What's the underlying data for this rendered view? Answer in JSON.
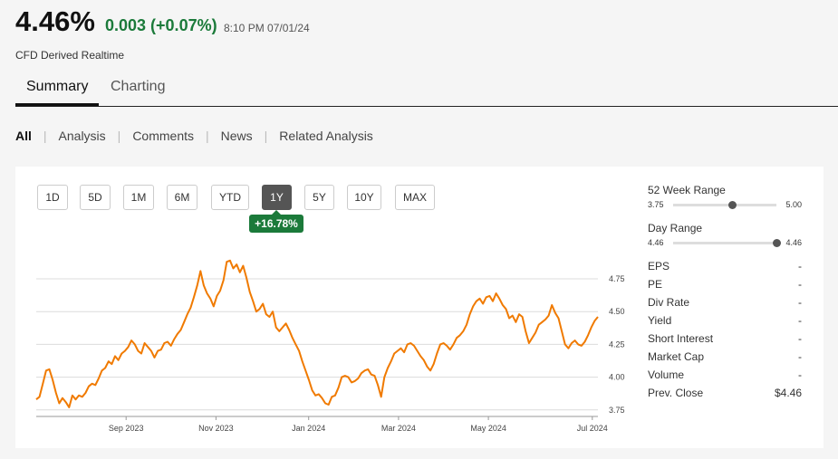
{
  "quote": {
    "price": "4.46%",
    "change": "0.003 (+0.07%)",
    "time": "8:10 PM 07/01/24",
    "source": "CFD Derived Realtime"
  },
  "tabs": [
    {
      "label": "Summary",
      "active": true
    },
    {
      "label": "Charting",
      "active": false
    }
  ],
  "subnav": [
    {
      "label": "All",
      "active": true
    },
    {
      "label": "Analysis"
    },
    {
      "label": "Comments"
    },
    {
      "label": "News"
    },
    {
      "label": "Related Analysis"
    }
  ],
  "ranges": [
    "1D",
    "5D",
    "1M",
    "6M",
    "YTD",
    "1Y",
    "5Y",
    "10Y",
    "MAX"
  ],
  "selected_range": "1Y",
  "performance": "+16.78%",
  "stats": {
    "week52": {
      "label": "52 Week Range",
      "low": "3.75",
      "high": "5.00",
      "position": 0.57
    },
    "day": {
      "label": "Day Range",
      "low": "4.46",
      "high": "4.46",
      "position": 1.0
    },
    "rows": [
      {
        "label": "EPS",
        "value": "-"
      },
      {
        "label": "PE",
        "value": "-"
      },
      {
        "label": "Div Rate",
        "value": "-"
      },
      {
        "label": "Yield",
        "value": "-"
      },
      {
        "label": "Short Interest",
        "value": "-"
      },
      {
        "label": "Market Cap",
        "value": "-"
      },
      {
        "label": "Volume",
        "value": "-"
      },
      {
        "label": "Prev. Close",
        "value": "$4.46"
      }
    ]
  },
  "chart_data": {
    "type": "line",
    "color": "#f07a00",
    "ylim": [
      3.7,
      4.93
    ],
    "y_ticks": [
      "3.75",
      "4.00",
      "4.25",
      "4.50",
      "4.75"
    ],
    "y_tick_values": [
      3.75,
      4.0,
      4.25,
      4.5,
      4.75
    ],
    "x_ticks": [
      {
        "label": "Sep 2023",
        "value": 0.16
      },
      {
        "label": "Nov 2023",
        "value": 0.32
      },
      {
        "label": "Jan 2024",
        "value": 0.485
      },
      {
        "label": "Mar 2024",
        "value": 0.645
      },
      {
        "label": "May 2024",
        "value": 0.805
      },
      {
        "label": "Jul 2024",
        "value": 0.99
      }
    ],
    "series": [
      {
        "values": [
          3.83,
          3.85,
          3.95,
          4.05,
          4.06,
          3.98,
          3.88,
          3.8,
          3.84,
          3.81,
          3.77,
          3.86,
          3.83,
          3.86,
          3.85,
          3.88,
          3.93,
          3.95,
          3.94,
          3.99,
          4.05,
          4.07,
          4.12,
          4.1,
          4.16,
          4.13,
          4.18,
          4.2,
          4.23,
          4.28,
          4.25,
          4.2,
          4.18,
          4.26,
          4.23,
          4.2,
          4.15,
          4.2,
          4.21,
          4.26,
          4.27,
          4.24,
          4.29,
          4.33,
          4.36,
          4.42,
          4.48,
          4.53,
          4.61,
          4.7,
          4.81,
          4.7,
          4.64,
          4.6,
          4.54,
          4.62,
          4.66,
          4.74,
          4.88,
          4.89,
          4.83,
          4.86,
          4.8,
          4.85,
          4.76,
          4.65,
          4.58,
          4.5,
          4.52,
          4.56,
          4.48,
          4.46,
          4.5,
          4.38,
          4.35,
          4.38,
          4.41,
          4.36,
          4.3,
          4.25,
          4.2,
          4.12,
          4.05,
          3.98,
          3.9,
          3.86,
          3.87,
          3.84,
          3.8,
          3.79,
          3.85,
          3.86,
          3.92,
          4.0,
          4.01,
          4.0,
          3.96,
          3.97,
          3.99,
          4.03,
          4.05,
          4.06,
          4.02,
          4.01,
          3.94,
          3.85,
          4.0,
          4.07,
          4.12,
          4.18,
          4.2,
          4.22,
          4.19,
          4.25,
          4.26,
          4.24,
          4.2,
          4.16,
          4.13,
          4.08,
          4.05,
          4.1,
          4.18,
          4.25,
          4.26,
          4.24,
          4.21,
          4.25,
          4.3,
          4.32,
          4.35,
          4.4,
          4.48,
          4.54,
          4.58,
          4.6,
          4.56,
          4.61,
          4.62,
          4.58,
          4.64,
          4.6,
          4.55,
          4.52,
          4.45,
          4.47,
          4.42,
          4.48,
          4.46,
          4.35,
          4.26,
          4.3,
          4.34,
          4.4,
          4.42,
          4.44,
          4.47,
          4.55,
          4.49,
          4.45,
          4.35,
          4.25,
          4.22,
          4.26,
          4.28,
          4.25,
          4.24,
          4.27,
          4.32,
          4.38,
          4.43,
          4.46
        ]
      }
    ]
  }
}
